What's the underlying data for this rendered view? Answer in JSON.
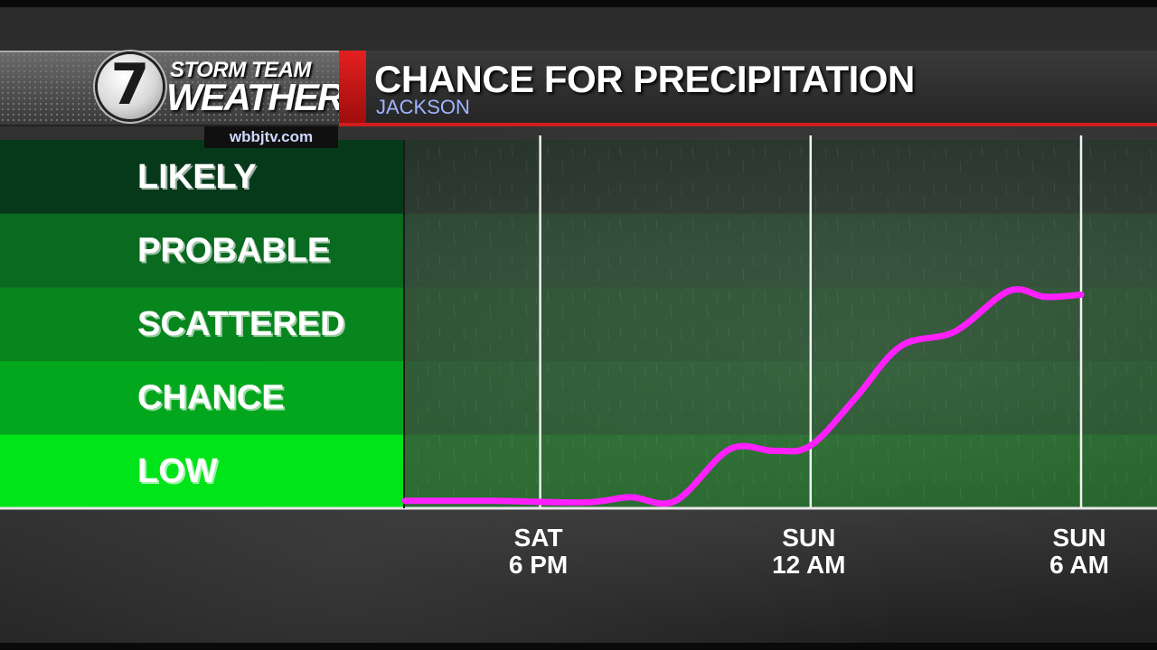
{
  "branding": {
    "logo_number": "7",
    "logo_line1": "STORM TEAM",
    "logo_line2": "WEATHER",
    "website": "wbbjtv.com"
  },
  "header": {
    "title": "CHANCE FOR PRECIPITATION",
    "location": "JACKSON"
  },
  "colors": {
    "accent_red": "#d31d1d",
    "line": "#ff1fff",
    "band_low": "#00e51a",
    "band_chance": "#03a71d",
    "band_scattered": "#07861e",
    "band_probable": "#096a20",
    "band_likely": "#06391a"
  },
  "chart_data": {
    "type": "line",
    "title": "CHANCE FOR PRECIPITATION",
    "subtitle": "JACKSON",
    "categories": [
      "LOW",
      "CHANCE",
      "SCATTERED",
      "PROBABLE",
      "LIKELY"
    ],
    "ylim": [
      0,
      5
    ],
    "xlim": [
      -1.5,
      6
    ],
    "x_ticks": [
      {
        "x": 0,
        "line1": "SAT",
        "line2": "6 PM"
      },
      {
        "x": 3,
        "line1": "SUN",
        "line2": "12 AM"
      },
      {
        "x": 6,
        "line1": "SUN",
        "line2": "6 AM"
      }
    ],
    "series": [
      {
        "values": [
          {
            "x": -1.5,
            "y": 0.1
          },
          {
            "x": -0.5,
            "y": 0.1
          },
          {
            "x": 0.5,
            "y": 0.08
          },
          {
            "x": 1.0,
            "y": 0.15
          },
          {
            "x": 1.5,
            "y": 0.1
          },
          {
            "x": 2.1,
            "y": 0.8
          },
          {
            "x": 2.6,
            "y": 0.78
          },
          {
            "x": 3.0,
            "y": 0.85
          },
          {
            "x": 3.5,
            "y": 1.5
          },
          {
            "x": 4.0,
            "y": 2.2
          },
          {
            "x": 4.6,
            "y": 2.4
          },
          {
            "x": 5.2,
            "y": 2.95
          },
          {
            "x": 5.6,
            "y": 2.87
          },
          {
            "x": 6.0,
            "y": 2.9
          }
        ]
      }
    ],
    "grid": true
  }
}
